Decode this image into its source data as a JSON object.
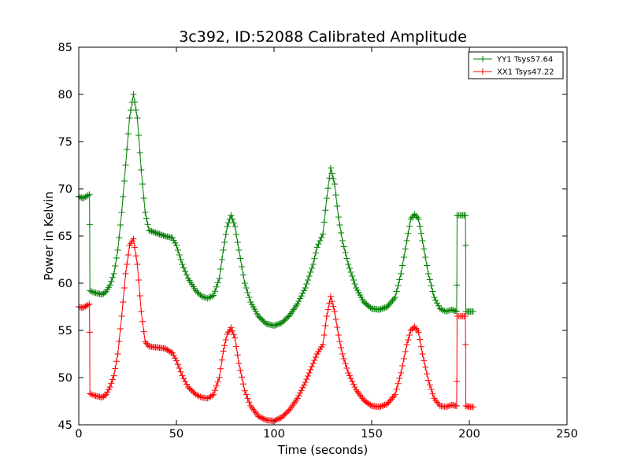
{
  "chart_data": {
    "type": "line",
    "title": "3c392, ID:52088 Calibrated Amplitude",
    "xlabel": "Time (seconds)",
    "ylabel": "Power in Kelvin",
    "xlim": [
      0,
      250
    ],
    "ylim": [
      45,
      85
    ],
    "xticks": [
      0,
      50,
      100,
      150,
      200,
      250
    ],
    "yticks": [
      45,
      50,
      55,
      60,
      65,
      70,
      75,
      80,
      85
    ],
    "grid": false,
    "legend_position": "top-right",
    "marker": "plus",
    "series": [
      {
        "name": "YY1 Tsys57.64",
        "color": "#008000",
        "points": [
          [
            0,
            69.2
          ],
          [
            2,
            69.0
          ],
          [
            4,
            69.2
          ],
          [
            5.5,
            69.4
          ],
          [
            5.6,
            66.2
          ],
          [
            5.7,
            59.2
          ],
          [
            8,
            59.0
          ],
          [
            12,
            58.8
          ],
          [
            14,
            59.1
          ],
          [
            16,
            59.8
          ],
          [
            18,
            61.0
          ],
          [
            20,
            63.5
          ],
          [
            22,
            67.5
          ],
          [
            24,
            72.5
          ],
          [
            26,
            77.5
          ],
          [
            28,
            80.0
          ],
          [
            30,
            77.5
          ],
          [
            32,
            72.0
          ],
          [
            34,
            67.5
          ],
          [
            36,
            65.6
          ],
          [
            40,
            65.3
          ],
          [
            44,
            65.0
          ],
          [
            48,
            64.8
          ],
          [
            50,
            64.0
          ],
          [
            53,
            62.0
          ],
          [
            56,
            60.5
          ],
          [
            60,
            59.2
          ],
          [
            63,
            58.6
          ],
          [
            66,
            58.4
          ],
          [
            69,
            58.7
          ],
          [
            72,
            60.5
          ],
          [
            74,
            63.5
          ],
          [
            76,
            66.0
          ],
          [
            78,
            67.2
          ],
          [
            80,
            66.0
          ],
          [
            82,
            63.5
          ],
          [
            85,
            60.0
          ],
          [
            88,
            58.0
          ],
          [
            92,
            56.5
          ],
          [
            96,
            55.7
          ],
          [
            100,
            55.5
          ],
          [
            104,
            55.8
          ],
          [
            108,
            56.6
          ],
          [
            112,
            57.8
          ],
          [
            116,
            59.5
          ],
          [
            120,
            62.0
          ],
          [
            122,
            63.8
          ],
          [
            125,
            65.2
          ],
          [
            127,
            69.0
          ],
          [
            129,
            72.2
          ],
          [
            131,
            70.5
          ],
          [
            133,
            67.0
          ],
          [
            135,
            64.5
          ],
          [
            138,
            62.0
          ],
          [
            142,
            59.5
          ],
          [
            146,
            58.0
          ],
          [
            150,
            57.3
          ],
          [
            154,
            57.2
          ],
          [
            158,
            57.5
          ],
          [
            162,
            58.5
          ],
          [
            165,
            61.0
          ],
          [
            168,
            64.5
          ],
          [
            170,
            66.8
          ],
          [
            172,
            67.3
          ],
          [
            174,
            66.8
          ],
          [
            176,
            64.5
          ],
          [
            179,
            61.0
          ],
          [
            182,
            58.5
          ],
          [
            185,
            57.3
          ],
          [
            188,
            57.0
          ],
          [
            191,
            57.2
          ],
          [
            193.5,
            57.0
          ],
          [
            193.6,
            59.8
          ],
          [
            193.7,
            67.2
          ],
          [
            196,
            67.2
          ],
          [
            198.0,
            67.2
          ],
          [
            198.1,
            64.0
          ],
          [
            198.2,
            57.0
          ],
          [
            200,
            57.0
          ],
          [
            202,
            57.0
          ]
        ]
      },
      {
        "name": "XX1 Tsys47.22",
        "color": "#ff0000",
        "points": [
          [
            0,
            57.5
          ],
          [
            2,
            57.4
          ],
          [
            4,
            57.6
          ],
          [
            5.5,
            57.8
          ],
          [
            5.6,
            54.8
          ],
          [
            5.7,
            48.3
          ],
          [
            8,
            48.1
          ],
          [
            12,
            47.9
          ],
          [
            14,
            48.2
          ],
          [
            16,
            49.0
          ],
          [
            18,
            50.2
          ],
          [
            20,
            52.5
          ],
          [
            22,
            56.5
          ],
          [
            24,
            61.0
          ],
          [
            26,
            64.0
          ],
          [
            28,
            64.7
          ],
          [
            30,
            62.0
          ],
          [
            32,
            57.0
          ],
          [
            34,
            53.8
          ],
          [
            36,
            53.3
          ],
          [
            40,
            53.2
          ],
          [
            44,
            53.1
          ],
          [
            48,
            52.6
          ],
          [
            50,
            51.8
          ],
          [
            53,
            50.2
          ],
          [
            56,
            49.0
          ],
          [
            60,
            48.2
          ],
          [
            63,
            47.9
          ],
          [
            66,
            47.8
          ],
          [
            69,
            48.2
          ],
          [
            72,
            50.0
          ],
          [
            74,
            52.8
          ],
          [
            76,
            54.6
          ],
          [
            78,
            55.3
          ],
          [
            80,
            54.2
          ],
          [
            82,
            51.5
          ],
          [
            85,
            48.6
          ],
          [
            88,
            47.0
          ],
          [
            92,
            45.9
          ],
          [
            96,
            45.5
          ],
          [
            100,
            45.4
          ],
          [
            104,
            45.8
          ],
          [
            108,
            46.6
          ],
          [
            112,
            47.8
          ],
          [
            116,
            49.5
          ],
          [
            120,
            51.5
          ],
          [
            122,
            52.5
          ],
          [
            125,
            53.5
          ],
          [
            127,
            56.5
          ],
          [
            129,
            58.6
          ],
          [
            131,
            57.0
          ],
          [
            133,
            54.5
          ],
          [
            135,
            52.5
          ],
          [
            138,
            50.5
          ],
          [
            142,
            48.7
          ],
          [
            146,
            47.6
          ],
          [
            150,
            47.0
          ],
          [
            154,
            46.9
          ],
          [
            158,
            47.2
          ],
          [
            162,
            48.2
          ],
          [
            165,
            50.5
          ],
          [
            168,
            53.5
          ],
          [
            170,
            55.0
          ],
          [
            172,
            55.4
          ],
          [
            174,
            54.8
          ],
          [
            176,
            52.5
          ],
          [
            179,
            49.7
          ],
          [
            182,
            47.8
          ],
          [
            185,
            47.0
          ],
          [
            188,
            46.9
          ],
          [
            191,
            47.1
          ],
          [
            193.5,
            47.0
          ],
          [
            193.6,
            49.6
          ],
          [
            193.7,
            56.5
          ],
          [
            196,
            56.5
          ],
          [
            198.0,
            56.5
          ],
          [
            198.1,
            53.5
          ],
          [
            198.2,
            47.0
          ],
          [
            200,
            46.9
          ],
          [
            202,
            46.9
          ]
        ]
      }
    ]
  }
}
